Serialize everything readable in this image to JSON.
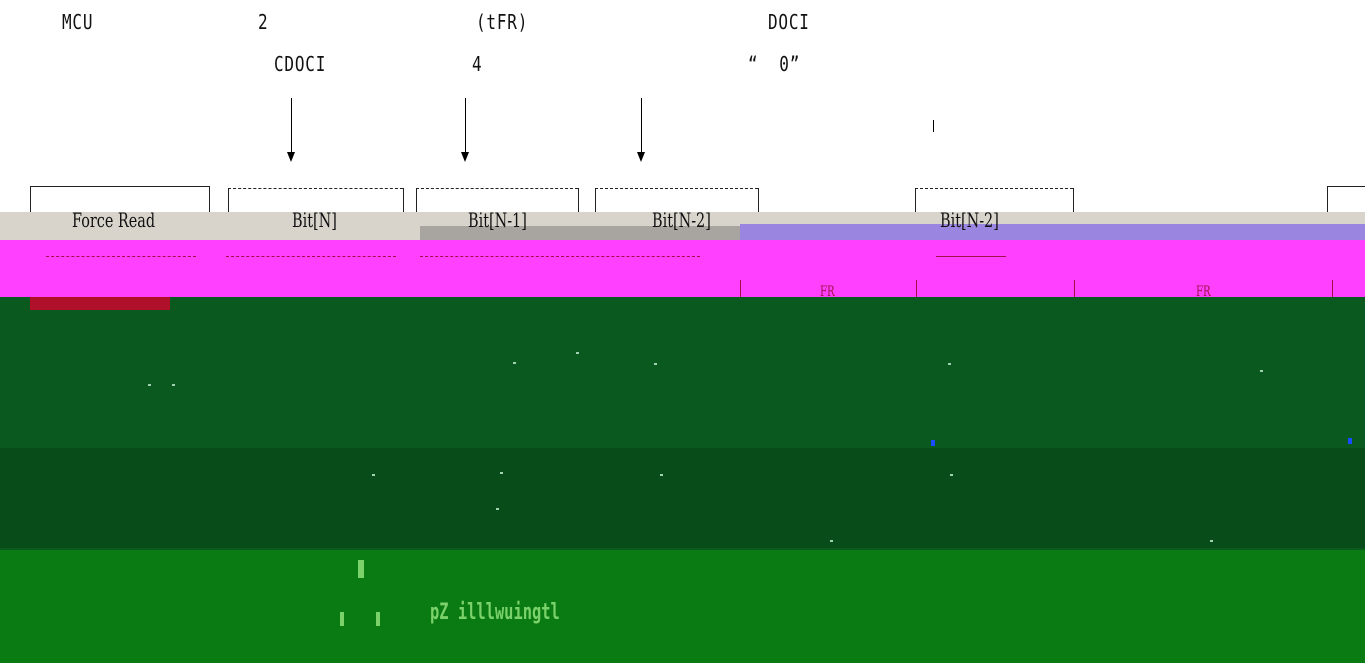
{
  "header": {
    "mcu": "MCU",
    "num_two": "2",
    "tfr": "(tFR)",
    "doci": "DOCI",
    "cdoci": "CDOCI",
    "num_four": "4",
    "zero_quoted": "“  0”"
  },
  "timing": {
    "force_read": "Force Read",
    "bit_n": "Bit[N]",
    "bit_n_minus_1": "Bit[N-1]",
    "bit_n_minus_2_a": "Bit[N-2]",
    "bit_n_minus_2_b": "Bit[N-2]",
    "fr_a": "FR",
    "fr_b": "FR"
  },
  "footer": {
    "garbled_text": "pZ illlwuingtl"
  },
  "colors": {
    "magenta_band": "#ff40ff",
    "dark_green": "#0a5a20",
    "bright_green": "#0a7a12",
    "crimson_bar": "#b0102a",
    "grey_band": "#d8d4cc"
  }
}
